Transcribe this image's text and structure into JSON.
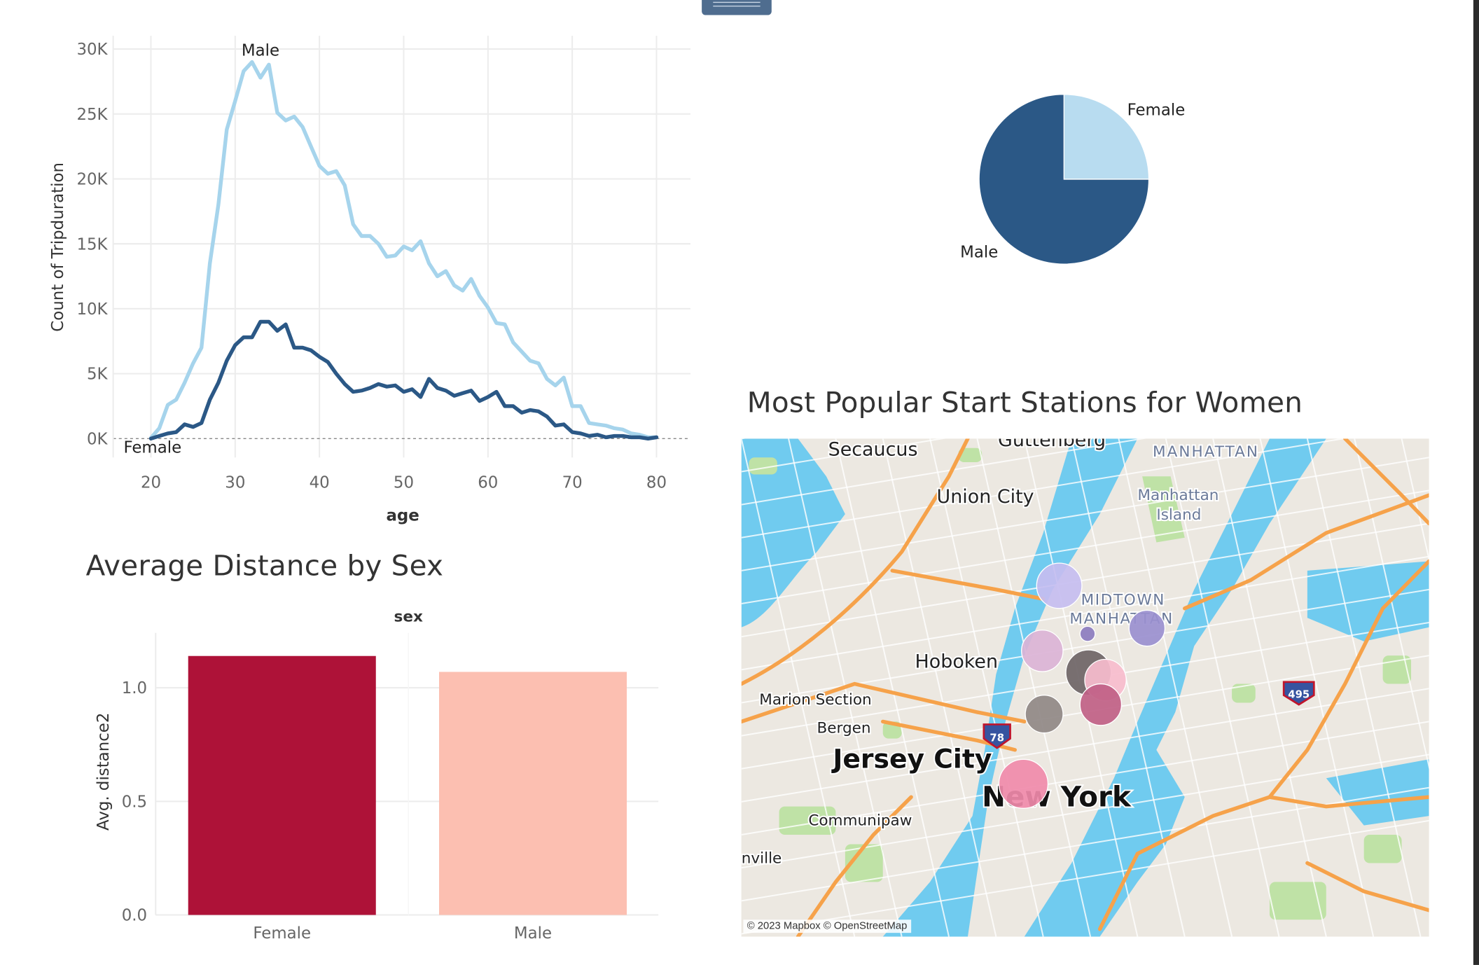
{
  "chart_data": [
    {
      "type": "line",
      "xlabel": "age",
      "ylabel": "Count of Tripduration",
      "xlim": [
        20,
        80
      ],
      "ylim": [
        0,
        30000
      ],
      "x_ticks": [
        "20",
        "30",
        "40",
        "50",
        "60",
        "70",
        "80"
      ],
      "y_ticks": [
        "0K",
        "5K",
        "10K",
        "15K",
        "20K",
        "25K",
        "30K"
      ],
      "grid": true,
      "colors": {
        "Male": "#a6d4ec",
        "Female": "#2b5886"
      },
      "x": [
        20,
        21,
        22,
        23,
        24,
        25,
        26,
        27,
        28,
        29,
        30,
        31,
        32,
        33,
        34,
        35,
        36,
        37,
        38,
        39,
        40,
        41,
        42,
        43,
        44,
        45,
        46,
        47,
        48,
        49,
        50,
        51,
        52,
        53,
        54,
        55,
        56,
        57,
        58,
        59,
        60,
        61,
        62,
        63,
        64,
        65,
        66,
        67,
        68,
        69,
        70,
        71,
        72,
        73,
        74,
        75,
        76,
        77,
        78,
        79,
        80
      ],
      "series": [
        {
          "name": "Male",
          "label": "Male",
          "values": [
            50,
            800,
            2600,
            3000,
            4300,
            5800,
            7000,
            13500,
            18000,
            23800,
            26000,
            28300,
            29000,
            27800,
            28800,
            25100,
            24500,
            24800,
            24000,
            22500,
            21000,
            20400,
            20600,
            19500,
            16500,
            15600,
            15600,
            15000,
            14000,
            14100,
            14800,
            14500,
            15200,
            13500,
            12500,
            12900,
            11800,
            11400,
            12300,
            11000,
            10100,
            8900,
            8800,
            7400,
            6700,
            6000,
            5800,
            4600,
            4100,
            4700,
            2500,
            2500,
            1200,
            1100,
            1000,
            800,
            700,
            400,
            300,
            100,
            100
          ]
        },
        {
          "name": "Female",
          "label": "Female",
          "values": [
            0,
            200,
            400,
            500,
            1100,
            900,
            1200,
            3000,
            4300,
            6000,
            7200,
            7800,
            7800,
            9000,
            9000,
            8300,
            8800,
            7000,
            7000,
            6800,
            6300,
            5900,
            5000,
            4200,
            3600,
            3700,
            3900,
            4200,
            4000,
            4100,
            3600,
            3800,
            3200,
            4600,
            3900,
            3700,
            3300,
            3500,
            3700,
            2900,
            3200,
            3600,
            2500,
            2500,
            2000,
            2200,
            2100,
            1700,
            1000,
            1100,
            500,
            400,
            200,
            300,
            100,
            200,
            200,
            100,
            100,
            0,
            100
          ]
        }
      ]
    },
    {
      "type": "pie",
      "slices": [
        {
          "label": "Female",
          "value": 25,
          "color": "#b8dcf0"
        },
        {
          "label": "Male",
          "value": 75,
          "color": "#2b5886"
        }
      ]
    },
    {
      "type": "bar",
      "title": "Average Distance by Sex",
      "column_header": "sex",
      "ylabel": "Avg. distance2",
      "ylim": [
        0,
        1.2
      ],
      "y_ticks": [
        "0.0",
        "0.5",
        "1.0"
      ],
      "categories": [
        "Female",
        "Male"
      ],
      "values": [
        1.14,
        1.07
      ],
      "colors": [
        "#ae1238",
        "#fcbfb1"
      ]
    }
  ],
  "map": {
    "title": "Most Popular Start Stations for Women",
    "attribution": "© 2023 Mapbox © OpenStreetMap",
    "labels": {
      "secaucus": "Secaucus",
      "guttenberg": "Guttenberg",
      "manhattan": "MANHATTAN",
      "manhattan_island_1": "Manhattan",
      "manhattan_island_2": "Island",
      "union_city": "Union City",
      "midtown_1": "MIDTOWN",
      "midtown_2": "MANHATTAN",
      "hoboken": "Hoboken",
      "marion_section": "Marion Section",
      "bergen": "Bergen",
      "jersey_city": "Jersey City",
      "new_york": "New York",
      "communipaw": "Communipaw",
      "nville": "nville",
      "shield_495": "495",
      "shield_78": "78"
    },
    "station_colors": [
      "#c5bdf0",
      "#9a8fcf",
      "#8c7cbf",
      "#dbb3d6",
      "#6e6466",
      "#f7bccd",
      "#c06086",
      "#908886",
      "#f08aaa"
    ],
    "colors": {
      "water": "#70cbef",
      "land": "#ece8e1",
      "park": "#bfe2a6",
      "highway": "#f6a24a"
    }
  }
}
